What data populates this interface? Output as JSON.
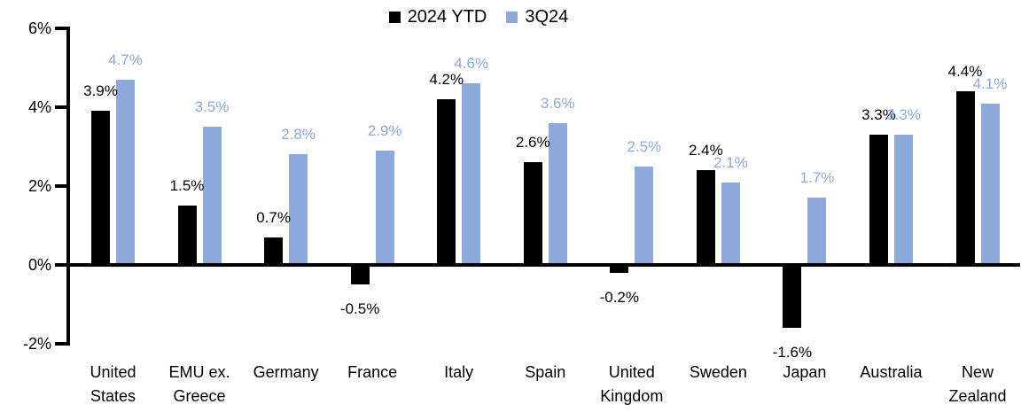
{
  "chart_data": {
    "type": "bar",
    "title": "",
    "categories": [
      "United States",
      "EMU ex. Greece",
      "Germany",
      "France",
      "Italy",
      "Spain",
      "United Kingdom",
      "Sweden",
      "Japan",
      "Australia",
      "New Zealand"
    ],
    "series": [
      {
        "name": "2024 YTD",
        "color": "#000000",
        "values": [
          3.9,
          1.5,
          0.7,
          -0.5,
          4.2,
          2.6,
          -0.2,
          2.4,
          -1.6,
          3.3,
          4.4
        ]
      },
      {
        "name": "3Q24",
        "color": "#8EA9DB",
        "values": [
          4.7,
          3.5,
          2.8,
          2.9,
          4.6,
          3.6,
          2.5,
          2.1,
          1.7,
          3.3,
          4.1
        ]
      }
    ],
    "value_label_suffix": "%",
    "y_axis": {
      "tick_values": [
        6,
        4,
        2,
        0,
        -2
      ],
      "tick_labels": [
        "6%",
        "4%",
        "2%",
        "0%",
        "-2%"
      ],
      "min": -2,
      "max": 6
    },
    "legend_position": "top-center",
    "grid": false,
    "background": "#FFFFFF"
  }
}
